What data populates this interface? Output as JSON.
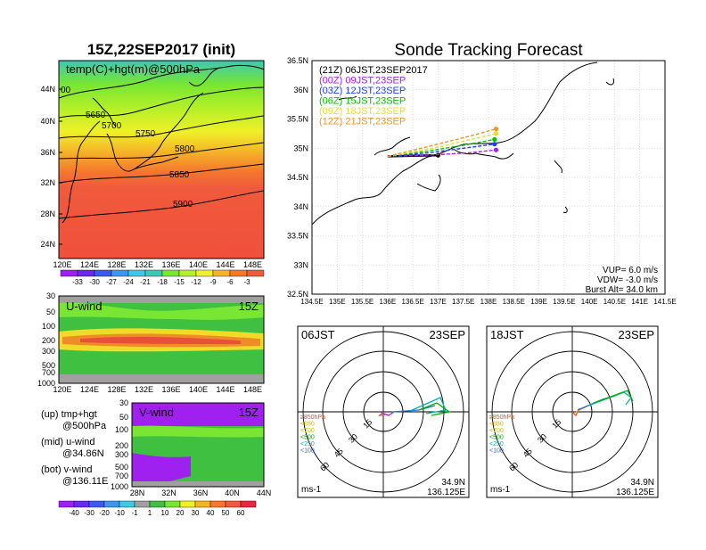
{
  "left": {
    "title": "15Z,22SEP2017 (init)",
    "map_label": "temp(C)+hgt(m)@500hPa",
    "lat_ticks": [
      "44N",
      "40N",
      "36N",
      "32N",
      "28N",
      "24N"
    ],
    "lon_ticks": [
      "120E",
      "124E",
      "128E",
      "132E",
      "136E",
      "140E",
      "144E",
      "148E"
    ],
    "contours": [
      "5650",
      "5700",
      "5750",
      "5800",
      "5850",
      "5900",
      "00"
    ],
    "temp_colorbar": [
      "-33",
      "-30",
      "-27",
      "-24",
      "-21",
      "-18",
      "-15",
      "-12",
      "-9",
      "-6",
      "-3"
    ],
    "uwind_label": "U-wind",
    "uwind_time": "15Z",
    "vwind_label": "V-wind",
    "vwind_time": "15Z",
    "p_ticks": [
      "30",
      "50",
      "100",
      "200",
      "300",
      "500",
      "700",
      "1000"
    ],
    "vwind_lat_ticks": [
      "28N",
      "32N",
      "36N",
      "40N",
      "44N"
    ],
    "wind_colorbar": [
      "-40",
      "-30",
      "-20",
      "-10",
      "-1",
      "1",
      "10",
      "20",
      "30",
      "40",
      "50",
      "60"
    ],
    "legend": [
      {
        "a": "(up) tmp+hgt",
        "b": "@500hPa"
      },
      {
        "a": "(mid) u-wind",
        "b": "@34.86N"
      },
      {
        "a": "(bot) v-wind",
        "b": "@136.11E"
      }
    ]
  },
  "right": {
    "title": "Sonde Tracking Forecast",
    "lat_ticks": [
      "36.5N",
      "36N",
      "35.5N",
      "35N",
      "34.5N",
      "34N",
      "33.5N",
      "33N",
      "32.5N"
    ],
    "lon_ticks": [
      "134.5E",
      "135E",
      "135.5E",
      "136E",
      "136.5E",
      "137E",
      "137.5E",
      "138E",
      "138.5E",
      "139E",
      "139.5E",
      "140E",
      "140.5E",
      "141E",
      "141.5E"
    ],
    "launches": [
      {
        "label": "(21Z)  06JST,23SEP2017",
        "color": "#000000"
      },
      {
        "label": "(00Z)  09JST,23SEP",
        "color": "#a020f0"
      },
      {
        "label": "(03Z)  12JST,23SEP",
        "color": "#1e3cff"
      },
      {
        "label": "(06Z)  15JST,23SEP",
        "color": "#00c000"
      },
      {
        "label": "(09Z)  18JST,23SEP",
        "color": "#e6dc32"
      },
      {
        "label": "(12Z)  21JST,23SEP",
        "color": "#f09628"
      }
    ],
    "params": {
      "vup": "VUP=  6.0 m/s",
      "vdw": "VDW= -3.0 m/s",
      "burst": "Burst Alt= 34.0 km"
    },
    "hodo1": {
      "time": "06JST",
      "date": "23SEP",
      "lat": "34.9N",
      "lon": "136.125E",
      "unit": "ms-1"
    },
    "hodo2": {
      "time": "18JST",
      "date": "23SEP",
      "lat": "34.9N",
      "lon": "136.125E",
      "unit": "ms-1"
    },
    "hodo_rings": [
      "15",
      "30",
      "45",
      "60"
    ],
    "hodo_legend": [
      {
        "label": "≥850hPa",
        "color": "#e0502a"
      },
      {
        "label": "<850",
        "color": "#e6b000"
      },
      {
        "label": "<700",
        "color": "#c0c000"
      },
      {
        "label": "<500",
        "color": "#00b000"
      },
      {
        "label": "<250",
        "color": "#00b0b0"
      },
      {
        "label": "<100",
        "color": "#2a6ee0"
      }
    ]
  },
  "chart_data": [
    {
      "type": "heatmap",
      "title": "15Z,22SEP2017 (init)",
      "xlabel": "",
      "ylabel": "",
      "xlim": [
        120,
        150
      ],
      "ylim": [
        21,
        48
      ],
      "colorbar": [
        -33,
        -30,
        -27,
        -24,
        -21,
        -18,
        -15,
        -12,
        -9,
        -6,
        -3
      ],
      "contour_levels": [
        5650,
        5700,
        5750,
        5800,
        5850,
        5900
      ]
    },
    {
      "type": "line",
      "title": "Sonde Tracking Forecast",
      "xlim": [
        134.5,
        141.5
      ],
      "ylim": [
        32.5,
        36.5
      ],
      "series": [
        {
          "name": "(21Z) 06JST,23SEP2017",
          "x": [
            136.0,
            136.5,
            137.0
          ],
          "y": [
            34.86,
            34.87,
            34.88
          ]
        },
        {
          "name": "(00Z) 09JST,23SEP",
          "x": [
            136.0,
            136.8,
            137.6,
            138.15
          ],
          "y": [
            34.86,
            34.88,
            34.92,
            34.97
          ]
        },
        {
          "name": "(03Z) 12JST,23SEP",
          "x": [
            136.0,
            136.8,
            137.5,
            138.12
          ],
          "y": [
            34.86,
            34.92,
            35.0,
            35.07
          ]
        },
        {
          "name": "(06Z) 15JST,23SEP",
          "x": [
            136.0,
            136.8,
            137.5,
            138.12
          ],
          "y": [
            34.86,
            34.95,
            35.05,
            35.15
          ]
        },
        {
          "name": "(09Z) 18JST,23SEP",
          "x": [
            136.0,
            136.9,
            137.6,
            138.15
          ],
          "y": [
            34.86,
            35.0,
            35.14,
            35.25
          ]
        },
        {
          "name": "(12Z) 21JST,23SEP",
          "x": [
            136.0,
            136.9,
            137.6,
            138.15
          ],
          "y": [
            34.86,
            35.05,
            35.2,
            35.33
          ]
        }
      ]
    }
  ]
}
